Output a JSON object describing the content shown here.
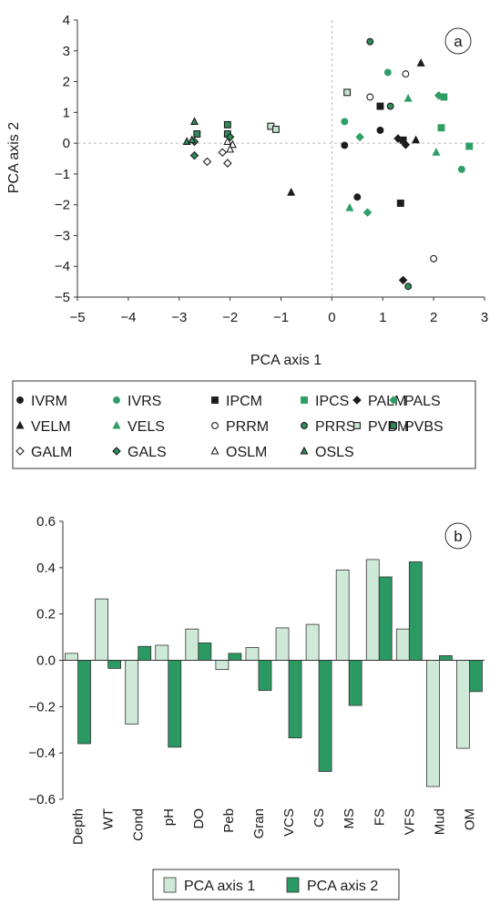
{
  "colors": {
    "dark": "#1c1c1c",
    "green": "#2e9e66",
    "light_fill": "#c9e6d2",
    "mid_fill": "#2e8b5a",
    "pale_bar": "#cfe9d8",
    "dark_bar": "#2a9a62",
    "axis": "#333333",
    "ref_line": "#bbbbbb"
  },
  "chart_data": [
    {
      "panel_label": "a",
      "type": "scatter",
      "xlabel": "PCA axis 1",
      "ylabel": "PCA axis 2",
      "xlim": [
        -5,
        3
      ],
      "ylim": [
        -5,
        4
      ],
      "xticks": [
        -5,
        -4,
        -3,
        -2,
        -1,
        0,
        1,
        2,
        3
      ],
      "yticks": [
        -5,
        -4,
        -3,
        -2,
        -1,
        0,
        1,
        2,
        3,
        4
      ],
      "xtick_labels": [
        "−5",
        "−4",
        "−3",
        "−2",
        "−1",
        "0",
        "1",
        "2",
        "3"
      ],
      "ytick_labels": [
        "−5",
        "−4",
        "−3",
        "−2",
        "−1",
        "0",
        "1",
        "2",
        "3",
        "4"
      ],
      "reference_lines": "dashed x=0 and y=0",
      "legend_placement": "below",
      "series": [
        {
          "name": "IVRM",
          "marker": "circle",
          "color": "dark",
          "fill": "solid",
          "points": [
            [
              0.25,
              -0.07
            ],
            [
              0.5,
              -1.75
            ],
            [
              0.95,
              0.42
            ]
          ]
        },
        {
          "name": "IVRS",
          "marker": "circle",
          "color": "green",
          "fill": "solid",
          "points": [
            [
              1.1,
              2.3
            ],
            [
              0.25,
              0.7
            ],
            [
              2.55,
              -0.85
            ]
          ]
        },
        {
          "name": "IPCM",
          "marker": "square",
          "color": "dark",
          "fill": "solid",
          "points": [
            [
              0.95,
              1.2
            ],
            [
              1.4,
              0.1
            ],
            [
              1.35,
              -1.95
            ]
          ]
        },
        {
          "name": "IPCS",
          "marker": "square",
          "color": "green",
          "fill": "solid",
          "points": [
            [
              2.2,
              1.5
            ],
            [
              2.15,
              0.5
            ],
            [
              2.7,
              -0.1
            ]
          ]
        },
        {
          "name": "PALM",
          "marker": "diamond",
          "color": "dark",
          "fill": "solid",
          "points": [
            [
              1.3,
              0.15
            ],
            [
              1.45,
              -0.05
            ],
            [
              1.4,
              -4.45
            ]
          ]
        },
        {
          "name": "PALS",
          "marker": "diamond",
          "color": "green",
          "fill": "solid",
          "points": [
            [
              2.1,
              1.55
            ],
            [
              0.55,
              0.2
            ],
            [
              0.7,
              -2.25
            ]
          ]
        },
        {
          "name": "VELM",
          "marker": "triangle",
          "color": "dark",
          "fill": "solid",
          "points": [
            [
              1.75,
              2.6
            ],
            [
              1.65,
              0.1
            ],
            [
              -0.8,
              -1.6
            ]
          ]
        },
        {
          "name": "VELS",
          "marker": "triangle",
          "color": "green",
          "fill": "solid",
          "points": [
            [
              1.5,
              1.45
            ],
            [
              2.05,
              -0.3
            ],
            [
              0.35,
              -2.1
            ]
          ]
        },
        {
          "name": "PRRM",
          "marker": "circle",
          "color": "dark",
          "fill": "open",
          "points": [
            [
              1.45,
              2.25
            ],
            [
              0.75,
              1.5
            ],
            [
              2.0,
              -3.75
            ]
          ]
        },
        {
          "name": "PRRS",
          "marker": "circle",
          "color": "green",
          "fill": "dark-outline",
          "points": [
            [
              0.75,
              3.3
            ],
            [
              1.15,
              1.2
            ],
            [
              1.5,
              -4.65
            ]
          ]
        },
        {
          "name": "PVBM",
          "marker": "square",
          "color": "dark",
          "fill": "light",
          "points": [
            [
              0.3,
              1.65
            ],
            [
              -1.2,
              0.55
            ],
            [
              -1.1,
              0.45
            ]
          ]
        },
        {
          "name": "PVBS",
          "marker": "square",
          "color": "green",
          "fill": "dark-outline",
          "points": [
            [
              -2.05,
              0.6
            ],
            [
              -2.65,
              0.3
            ],
            [
              -2.05,
              0.3
            ]
          ]
        },
        {
          "name": "GALM",
          "marker": "diamond",
          "color": "dark",
          "fill": "open",
          "points": [
            [
              -2.45,
              -0.6
            ],
            [
              -2.05,
              -0.65
            ],
            [
              -2.15,
              -0.3
            ]
          ]
        },
        {
          "name": "GALS",
          "marker": "diamond",
          "color": "green",
          "fill": "dark-outline",
          "points": [
            [
              -2.7,
              -0.4
            ],
            [
              -2.7,
              0.05
            ],
            [
              -2.0,
              0.2
            ]
          ]
        },
        {
          "name": "OSLM",
          "marker": "triangle",
          "color": "dark",
          "fill": "open",
          "points": [
            [
              -2.05,
              0.05
            ],
            [
              -1.95,
              -0.05
            ],
            [
              -2.0,
              -0.2
            ]
          ]
        },
        {
          "name": "OSLS",
          "marker": "triangle",
          "color": "green",
          "fill": "dark-outline",
          "points": [
            [
              -2.7,
              0.7
            ],
            [
              -2.85,
              0.05
            ],
            [
              -2.75,
              0.1
            ]
          ]
        }
      ]
    },
    {
      "panel_label": "b",
      "type": "bar",
      "categories": [
        "Depth",
        "WT",
        "Cond",
        "pH",
        "DO",
        "Peb",
        "Gran",
        "VCS",
        "CS",
        "MS",
        "FS",
        "VFS",
        "Mud",
        "OM"
      ],
      "ylim": [
        -0.6,
        0.6
      ],
      "yticks": [
        -0.6,
        -0.4,
        -0.2,
        0.0,
        0.2,
        0.4,
        0.6
      ],
      "ytick_labels": [
        "−0.6",
        "−0.4",
        "−0.2",
        "0.0",
        "0.2",
        "0.4",
        "0.6"
      ],
      "legend_placement": "bottom",
      "series": [
        {
          "name": "PCA axis 1",
          "values": [
            0.03,
            0.265,
            -0.275,
            0.065,
            0.135,
            -0.04,
            0.055,
            0.14,
            0.155,
            0.39,
            0.435,
            0.135,
            -0.545,
            -0.38
          ]
        },
        {
          "name": "PCA axis 2",
          "values": [
            -0.36,
            -0.035,
            0.06,
            -0.375,
            0.075,
            0.03,
            -0.13,
            -0.335,
            -0.48,
            -0.195,
            0.36,
            0.425,
            0.02,
            -0.135
          ]
        }
      ]
    }
  ]
}
